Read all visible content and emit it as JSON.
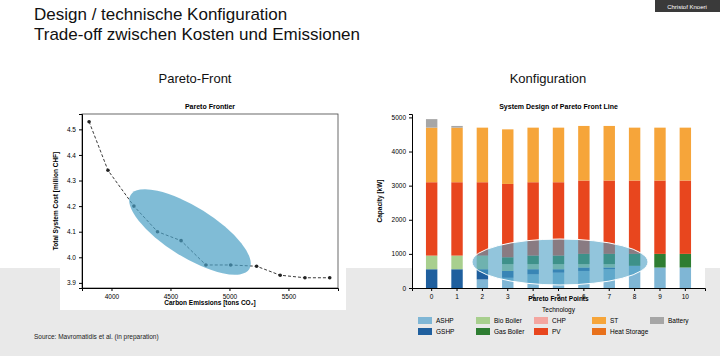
{
  "slide": {
    "title": [
      "Design / technische Konfiguration",
      "Trade-off zwischen Kosten und Emissionen"
    ],
    "panel_titles": [
      "Pareto-Front",
      "Konfiguration"
    ],
    "source": "Source: Mavromatidis et al. (in preparation)",
    "presenter": "Christof Knoeri"
  },
  "chart_data": [
    {
      "type": "line",
      "title": "Pareto Frontier",
      "x_label": "Carbon Emissions [tons CO₂]",
      "y_label": "Total System Cost [million CHF]",
      "x": [
        3810,
        3970,
        4190,
        4390,
        4590,
        4800,
        5010,
        5230,
        5430,
        5640,
        5850
      ],
      "values": [
        4.53,
        4.34,
        4.2,
        4.1,
        4.065,
        3.97,
        3.97,
        3.965,
        3.93,
        3.92,
        3.92
      ],
      "color": "#222222",
      "marker": "circle",
      "line_style": "dashed",
      "grid": false,
      "xlim": [
        3750,
        5920
      ],
      "xticks": [
        4000,
        4500,
        5000,
        5500
      ],
      "ylim": [
        3.88,
        4.56
      ],
      "yticks": [
        3.9,
        {
          "value": 4,
          "label": "4.0"
        },
        4.1,
        4.2,
        4.3,
        4.4,
        4.5
      ]
    },
    {
      "type": "bar",
      "stacked": true,
      "title": "System Design of Pareto Front Line",
      "x_label": "Pareto Front Points",
      "y_label": "Capacity [kW]",
      "legend_title": "Technology",
      "legend": "bottom",
      "grid": false,
      "categories": [
        "0",
        "1",
        "2",
        "3",
        "4",
        "5",
        "6",
        "7",
        "8",
        "9",
        "10"
      ],
      "series": [
        {
          "name": "ASHP",
          "color": "#7fb6d5",
          "values": [
            0,
            0,
            250,
            300,
            400,
            450,
            500,
            550,
            650,
            600,
            600
          ]
        },
        {
          "name": "GSHP",
          "color": "#1f5f9e",
          "values": [
            550,
            550,
            300,
            200,
            150,
            100,
            100,
            50,
            0,
            0,
            0
          ]
        },
        {
          "name": "Bio Boiler",
          "color": "#a8cf8e",
          "values": [
            400,
            400,
            400,
            200,
            150,
            150,
            100,
            100,
            0,
            0,
            0
          ]
        },
        {
          "name": "Gas Boiler",
          "color": "#2e7d32",
          "values": [
            0,
            0,
            0,
            200,
            250,
            250,
            300,
            300,
            350,
            400,
            400
          ]
        },
        {
          "name": "CHP",
          "color": "#f4a6a0",
          "values": [
            0,
            0,
            0,
            0,
            0,
            0,
            0,
            0,
            0,
            0,
            0
          ]
        },
        {
          "name": "PV",
          "color": "#e8461e",
          "values": [
            2150,
            2150,
            2150,
            2150,
            2150,
            2150,
            2150,
            2150,
            2150,
            2150,
            2150
          ]
        },
        {
          "name": "ST",
          "color": "#f6a53a",
          "values": [
            1600,
            1600,
            1600,
            1600,
            1600,
            1600,
            1600,
            1600,
            1550,
            1550,
            1550
          ]
        },
        {
          "name": "Heat Storage",
          "color": "#e8711c",
          "values": [
            0,
            0,
            0,
            0,
            0,
            0,
            0,
            0,
            0,
            0,
            0
          ]
        },
        {
          "name": "Battery",
          "color": "#a6a6a6",
          "values": [
            250,
            50,
            0,
            0,
            0,
            0,
            0,
            0,
            0,
            0,
            0
          ]
        }
      ],
      "ylim": [
        0,
        5100
      ],
      "yticks": [
        0,
        1000,
        2000,
        3000,
        4000,
        5000
      ]
    }
  ]
}
